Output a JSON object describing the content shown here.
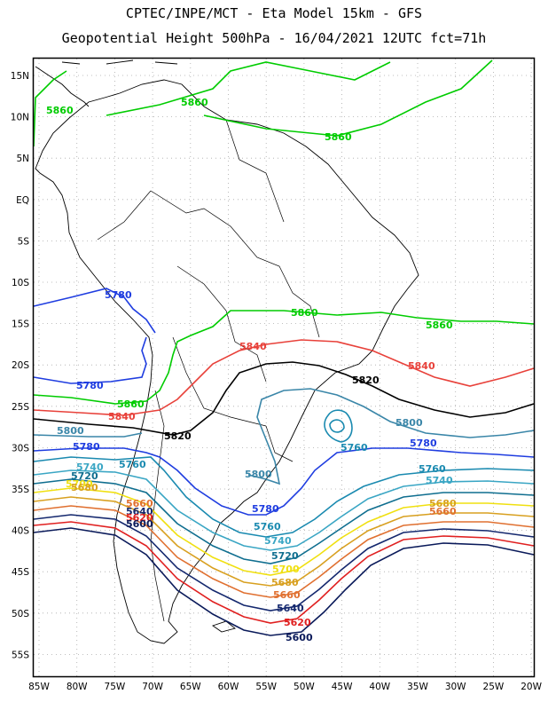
{
  "header": {
    "line1": "CPTEC/INPE/MCT  -  Eta Model 15km - GFS",
    "line2": "Geopotential Height 500hPa - 16/04/2021 12UTC fct=71h"
  },
  "axes": {
    "lat_labels": [
      "15N",
      "10N",
      "5N",
      "EQ",
      "5S",
      "10S",
      "15S",
      "20S",
      "25S",
      "30S",
      "35S",
      "40S",
      "45S",
      "50S",
      "55S"
    ],
    "lon_labels": [
      "85W",
      "80W",
      "75W",
      "70W",
      "65W",
      "60W",
      "55W",
      "50W",
      "45W",
      "40W",
      "35W",
      "30W",
      "25W",
      "20W"
    ]
  },
  "colors": {
    "c5860": "#00cc00",
    "c5840": "#e8413a",
    "c5820": "#000000",
    "c5800": "#3a86a8",
    "c5780": "#1f3de0",
    "c5760": "#1a8ab0",
    "c5740": "#3aa6c4",
    "c5720": "#0f6e8f",
    "c5700": "#f0e010",
    "c5680": "#d8a020",
    "c5660": "#e07030",
    "c5640": "#14286e",
    "c5620": "#e02020",
    "c5600": "#0a1a5a"
  },
  "contour_labels": {
    "l5860": "5860",
    "l5840": "5840",
    "l5820": "5820",
    "l5800": "5800",
    "l5780": "5780",
    "l5760": "5760",
    "l5740": "5740",
    "l5720": "5720",
    "l5700": "5700",
    "l5680": "5680",
    "l5660": "5660",
    "l5640": "5640",
    "l5620": "5620",
    "l5600": "5600"
  }
}
